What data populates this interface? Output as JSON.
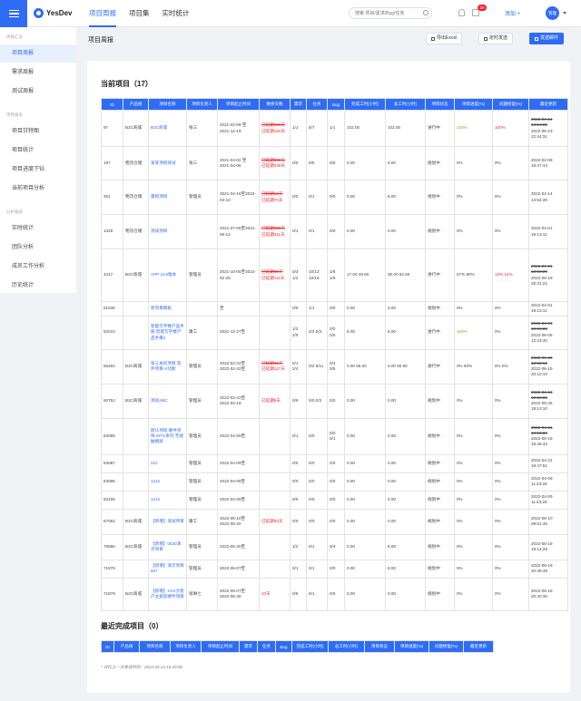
{
  "header": {
    "logo": "YesDev",
    "nav": [
      "项目周报",
      "项目集",
      "实时统计"
    ],
    "search_placeholder": "搜索 项目/需求/Bug/任务",
    "badge": "29",
    "add_label": "添加 +",
    "avatar": "管理"
  },
  "sidebar": {
    "groups": [
      "周报汇总",
      "项目报表",
      "分析报表"
    ],
    "items": [
      "项目周报",
      "需求周报",
      "测试周报",
      "项目甘特图",
      "项目统计",
      "项目进度下钻",
      "当前项目分析",
      "实时统计",
      "团队分析",
      "成员工作分析",
      "历史统计"
    ]
  },
  "page": {
    "title": "项目周报",
    "export": "导出Excel",
    "schedule": "定时发送",
    "send": "发送邮件"
  },
  "current": {
    "title": "当前项目（17）",
    "headers": [
      "ID",
      "产品线",
      "项目名称",
      "项目负责人",
      "项目起止时间",
      "剩余天数",
      "需求",
      "任务",
      "Bug",
      "完成工时(小时)",
      "总工时(小时)",
      "项目状态",
      "项目进度(%)",
      "问题修复(%)",
      "最近更新"
    ],
    "rows": [
      [
        "97",
        "B2C商城",
        "B2C商城",
        "张三",
        "2021-02-08 至2021-12-19",
        "已延期126天|已延期182天",
        "1/1",
        "6/7",
        "1/1",
        "102.00",
        "102.00",
        "进行中",
        "100%",
        "100%",
        "2022-04-14 14:54:33|2022-05-23 22:44:31"
      ],
      [
        "197",
        "物流仓储",
        "某某项目测试",
        "张三",
        "2021-04-02 至 2021-04-06",
        "已延期383天|已延期439天",
        "0/0",
        "0/5",
        "0/0",
        "0.00",
        "0.00",
        "规划中",
        "0%",
        "0%",
        "2022-04-08 18:47:44"
      ],
      [
        "251",
        "物流仓储",
        "量构项目",
        "管理员",
        "2021-04-18至2022-04-10",
        "已延期14天|已延期70天",
        "0/0",
        "0/1",
        "0/0",
        "0.00",
        "5.00",
        "规划中",
        "0%",
        "0%",
        "2022-04-14 14:54:36"
      ],
      [
        "1349",
        "物流仓储",
        "测试项目",
        "",
        "2021-07-06至2021-08-12",
        "已延期255天|已延期311天",
        "0/1",
        "0/1",
        "0/0",
        "0.00",
        "0.00",
        "规划中",
        "0%",
        "0%",
        "2022-04-01 19:13:11"
      ],
      [
        "4417",
        "B2C商城",
        "APP v3.5版本",
        "管理员",
        "2021-10-05至2022-02-28",
        "已延期55天|已延期111天",
        "0/3 1/2",
        "10/13 10/18",
        "1/8 1/9",
        "17.00 49.50",
        "30.00 62.50",
        "进行中",
        "57% 80%",
        "13% 12%",
        "2022-04-21 18:50:29|2022-06-19 20:31:22"
      ],
      [
        "51535",
        "",
        "新项目模板",
        "",
        "至",
        "",
        "0/0",
        "1/1",
        "0/0",
        "0.00",
        "0.00",
        "规划中",
        "0%",
        "0%",
        "2022-04-01 19:13:11"
      ],
      [
        "52010",
        "",
        "智能写字楼产品手册 智能写字楼产品手册2",
        "康工",
        "2021-12-27至",
        "",
        "1/2 2/9",
        "2/2 2/3",
        "0/0 0/0",
        "8.00",
        "8.00",
        "进行中",
        "100%",
        "0%",
        "2022-04-21 19:15:36|2022-06-06 12:23:40"
      ],
      [
        "56262",
        "B2C商城",
        "张三本的项目 软件项目-X功能",
        "管理员",
        "2022-02-22至 2022-02-22至",
        "已延期61天|已延期117天",
        "0/1 2/4",
        "0/2 8/11",
        "0/4 0/5",
        "0.00 56.00",
        "0.00 60.50",
        "进行中",
        "0% 93%",
        "0% 0%",
        "2022-04-22 12:53:13|2022-06-19 20:10:10"
      ],
      [
        "60752",
        "B2C商城",
        "测试ABC",
        "管理员",
        "2022-03-22至 2022-04-19",
        "已延期5天",
        "0/6",
        "0/0 0/3",
        "0/0",
        "0.00",
        "0.00",
        "规划中",
        "0%",
        "0%",
        "2022-04-19 19:15:36|2022-05-26 19:13:10"
      ],
      [
        "63085",
        "",
        "默认项目 硬件项目-MTG系列 无线触摸屏",
        "管理员",
        "2022-04-09至",
        "",
        "0/1",
        "0/0",
        "0/0 0/1",
        "0.00",
        "0.00",
        "规划中",
        "0%",
        "0%",
        "2022-04-21 19:15:36|2022-06-19 18:45:42"
      ],
      [
        "63087",
        "",
        "222",
        "管理员",
        "2022-04-09至",
        "",
        "0/0",
        "0/0",
        "0/0",
        "0.00",
        "0.00",
        "规划中",
        "0%",
        "0%",
        "2022-04-21 18:47:51"
      ],
      [
        "63096",
        "",
        "1212",
        "管理员",
        "2022-04-09至",
        "",
        "0/0",
        "0/0",
        "0/0",
        "0.00",
        "0.00",
        "规划中",
        "0%",
        "0%",
        "2022-04-09 11:43:26"
      ],
      [
        "63105",
        "",
        "1212",
        "管理员",
        "2022-04-09至",
        "",
        "0/0",
        "0/0",
        "0/0",
        "0.00",
        "0.00",
        "规划中",
        "0%",
        "0%",
        "2022-04-09 11:43:29"
      ],
      [
        "67562",
        "B2C商城",
        "【新增】测试项目",
        "康工",
        "2022-05-10至 2022-05-20",
        "已延期30天",
        "0/0",
        "0/0",
        "0/0",
        "0.00",
        "0.00",
        "规划中",
        "0%",
        "0%",
        "2022-05-10 09:51:45"
      ],
      [
        "70695",
        "B2C商城",
        "【新增】0530演示项目",
        "管理员",
        "2022-05-30至",
        "",
        "1/2",
        "0/1",
        "0/4",
        "0.00",
        "6.00",
        "规划中",
        "0%",
        "0%",
        "2022-06-19 19:14:29"
      ],
      [
        "71876",
        "",
        "【新增】演示项目607",
        "管理员",
        "2022-06-07至",
        "",
        "0/1",
        "0/1",
        "0/0",
        "0.00",
        "8.00",
        "规划中",
        "0%",
        "0%",
        "2022-06-19 20:39:49"
      ],
      [
        "71879",
        "B2C商城",
        "【新增】XXX大客户主板软硬件项目",
        "张琳七",
        "2022-06-07至 2022-06-30",
        "10天",
        "0/5",
        "0/1",
        "0/0",
        "0.00",
        "0.00",
        "规划中",
        "0%",
        "0%",
        "2022-06-19 20:40:36"
      ]
    ]
  },
  "recent": {
    "title": "最近完成项目（0）",
    "headers": [
      "ID",
      "产品线",
      "项目名称",
      "项目负责人",
      "项目起止时间",
      "需求",
      "任务",
      "Bug",
      "完成工时(小时)",
      "总工时(小时)",
      "项目状态",
      "项目进度(%)",
      "问题修复(%)",
      "最近更新"
    ]
  },
  "footnote": "* 对比上一次发送时间：2022-04-24 16:29:08"
}
